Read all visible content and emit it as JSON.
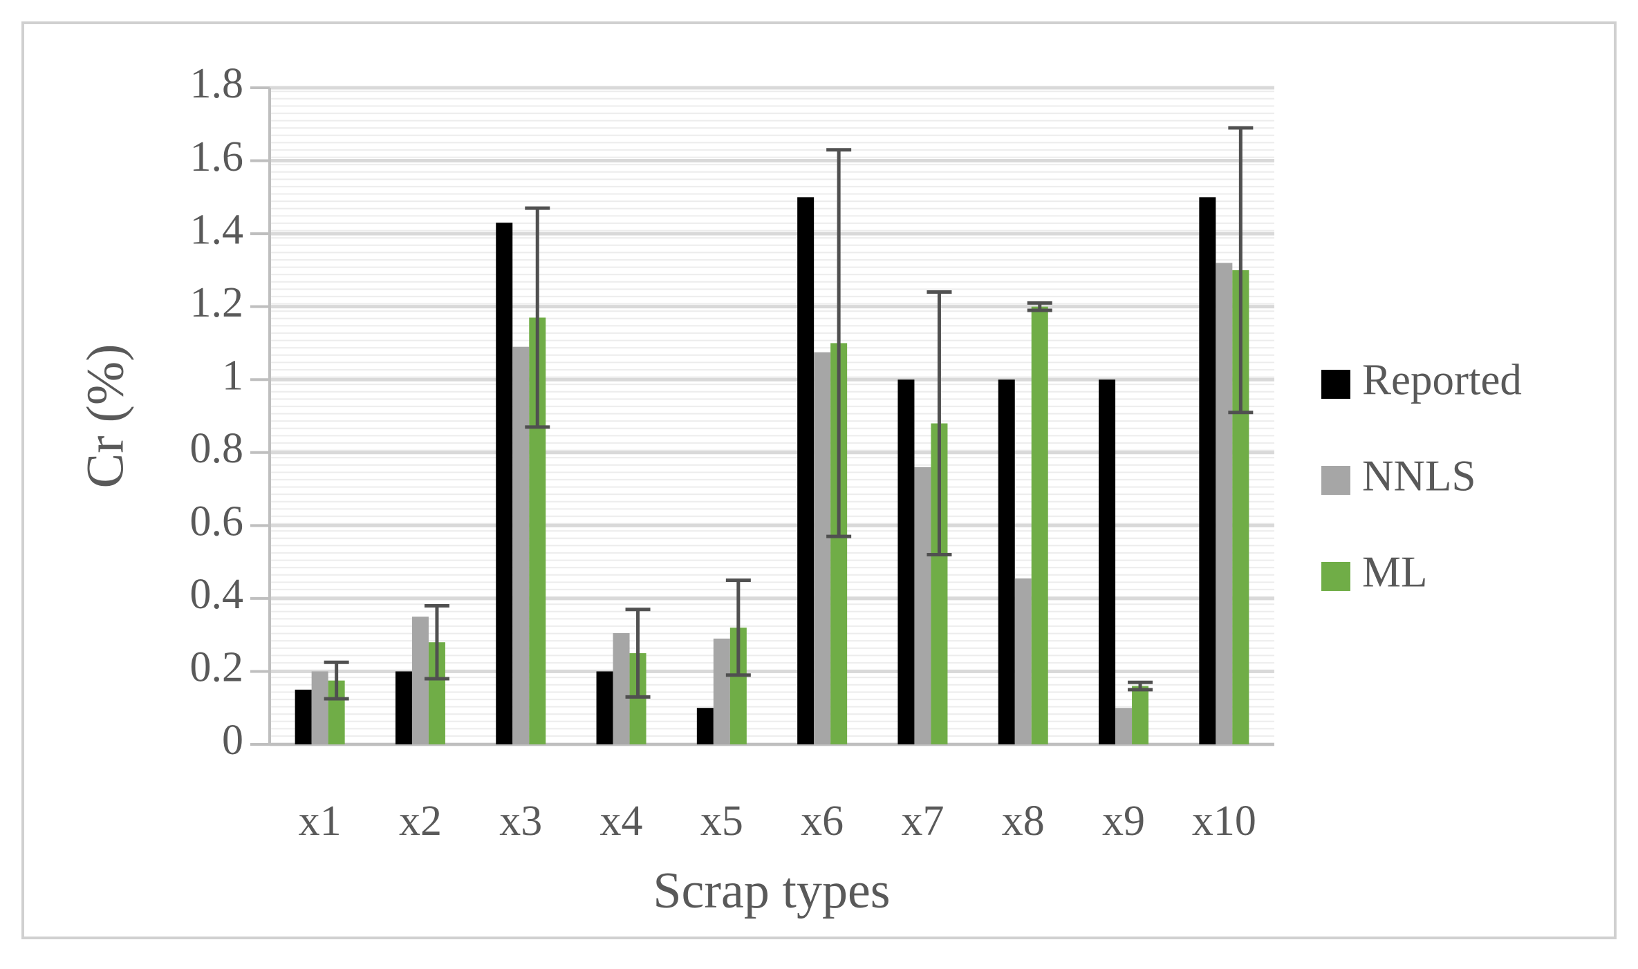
{
  "chart_data": {
    "type": "bar",
    "y_label": "Cr (%)",
    "x_label": "Scrap types",
    "categories": [
      "x1",
      "x2",
      "x3",
      "x4",
      "x5",
      "x6",
      "x7",
      "x8",
      "x9",
      "x10"
    ],
    "series": [
      {
        "name": "Reported",
        "color": "#000000",
        "values": [
          0.15,
          0.2,
          1.43,
          0.2,
          0.1,
          1.5,
          1.0,
          1.0,
          1.0,
          1.5
        ]
      },
      {
        "name": "NNLS",
        "color": "#a6a6a6",
        "values": [
          0.2,
          0.35,
          1.09,
          0.305,
          0.29,
          1.075,
          0.76,
          0.455,
          0.1,
          1.32
        ]
      },
      {
        "name": "ML",
        "color": "#70ad47",
        "values": [
          0.175,
          0.28,
          1.17,
          0.25,
          0.32,
          1.1,
          0.88,
          1.2,
          0.16,
          1.3
        ],
        "errors": [
          0.05,
          0.1,
          0.3,
          0.12,
          0.13,
          0.53,
          0.36,
          0.01,
          0.01,
          0.39
        ]
      }
    ],
    "ylim": [
      0,
      1.8
    ],
    "yticks": [
      0,
      0.2,
      0.4,
      0.6,
      0.8,
      1,
      1.2,
      1.4,
      1.6,
      1.8
    ],
    "grid": true,
    "legend": "right"
  }
}
